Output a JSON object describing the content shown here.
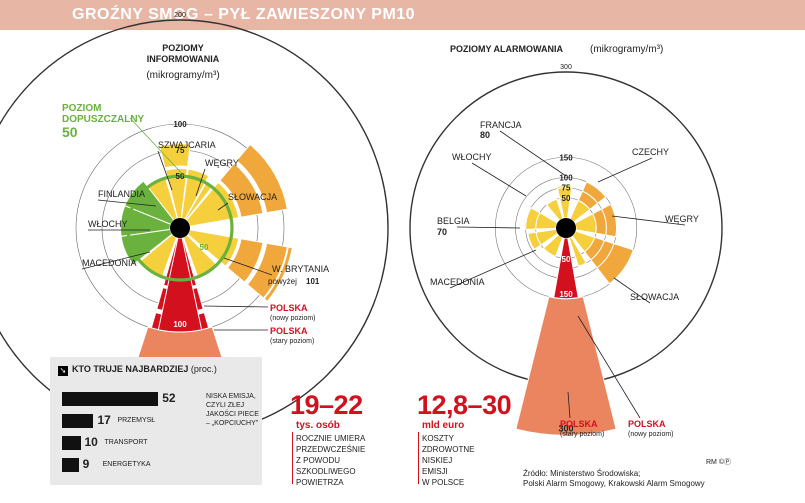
{
  "header": {
    "title": "GROŹNY SMOG – PYŁ ZAWIESZONY PM10"
  },
  "chart_data": [
    {
      "type": "polar-bar",
      "title_lines": [
        "POZIOMY",
        "INFORMOWANIA"
      ],
      "unit_label": "(mikrogramy/m³)",
      "scale_ticks": [
        50,
        75,
        100,
        200
      ],
      "reference": {
        "label_lines": [
          "POZIOM",
          "DOPUSZCZALNY"
        ],
        "value": "50"
      },
      "countries": [
        {
          "name": "SZWAJCARIA",
          "value": 75
        },
        {
          "name": "WĘGRY",
          "value": 50
        },
        {
          "name": "SŁOWACJA",
          "value": 100
        },
        {
          "name": "W. BRYTANIA",
          "value": 101,
          "note": "powyżej 101"
        },
        {
          "name": "POLSKA",
          "value": 200,
          "note": "(stary poziom)"
        },
        {
          "name": "POLSKA",
          "value": 100,
          "note": "(nowy poziom)"
        },
        {
          "name": "MACEDONIA",
          "value": 50
        },
        {
          "name": "WŁOCHY",
          "value": 50
        },
        {
          "name": "FINLANDIA",
          "value": 50
        }
      ],
      "value_labels": [
        "100",
        "200"
      ]
    },
    {
      "type": "polar-bar",
      "title": "POZIOMY ALARMOWANIA",
      "unit_label": "(mikrogramy/m³)",
      "scale_ticks": [
        50,
        75,
        100,
        150,
        300
      ],
      "countries": [
        {
          "name": "FRANCJA",
          "value": 80,
          "value_label": "80"
        },
        {
          "name": "CZECHY",
          "value": 100
        },
        {
          "name": "WĘGRY",
          "value": 100
        },
        {
          "name": "SŁOWACJA",
          "value": 150
        },
        {
          "name": "POLSKA",
          "value": 300,
          "note": "(stary poziom)"
        },
        {
          "name": "POLSKA",
          "value": 150,
          "note": "(nowy poziom)"
        },
        {
          "name": "MACEDONIA",
          "value": 50
        },
        {
          "name": "BELGIA",
          "value": 70,
          "value_label": "70"
        },
        {
          "name": "WŁOCHY",
          "value": 75
        }
      ],
      "value_labels": [
        "150",
        "300"
      ]
    },
    {
      "type": "bar",
      "title": "KTO TRUJE NAJBARDZIEJ",
      "unit": "(proc.)",
      "categories": [
        "NISKA EMISJA, CZYLI ZŁEJ JAKOŚCI PIECE – „KOPCIUCHY”",
        "PRZEMYSŁ",
        "TRANSPORT",
        "ENERGETYKA"
      ],
      "values": [
        52,
        17,
        10,
        9
      ]
    }
  ],
  "bars": {
    "title": "KTO TRUJE NAJBARDZIEJ",
    "unit": "(proc.)",
    "items": [
      {
        "value": "52",
        "label_lines": [
          "NISKA EMISJA,",
          "CZYLI ZŁEJ",
          "JAKOŚCI PIECE",
          "– „KOPCIUCHY”"
        ]
      },
      {
        "value": "17",
        "label_lines": [
          "PRZEMYSŁ"
        ]
      },
      {
        "value": "10",
        "label_lines": [
          "TRANSPORT"
        ]
      },
      {
        "value": "9",
        "label_lines": [
          "ENERGETYKA"
        ]
      }
    ]
  },
  "stats": [
    {
      "big": "19–22",
      "unit": "tys. osób",
      "desc_lines": [
        "ROCZNIE UMIERA",
        "PRZEDWCZEŚNIE",
        "Z POWODU",
        "SZKODLIWEGO",
        "POWIETRZA"
      ]
    },
    {
      "big": "12,8–30",
      "unit": "mld euro",
      "desc_lines": [
        "KOSZTY",
        "ZDROWOTNE",
        "NISKIEJ",
        "EMISJI",
        "W POLSCE"
      ]
    }
  ],
  "source": {
    "lines": [
      "Źródło: Ministerstwo Środowiska;",
      "Polski Alarm Smogowy, Krakowski Alarm Smogowy"
    ]
  },
  "credit": "RM ©Ⓟ",
  "colors": {
    "red": "#d3101e",
    "salmon": "#ea8560",
    "orange": "#f0a83c",
    "yellow": "#f6cf3c",
    "green": "#6ab23d",
    "header": "#e8b6a5"
  }
}
